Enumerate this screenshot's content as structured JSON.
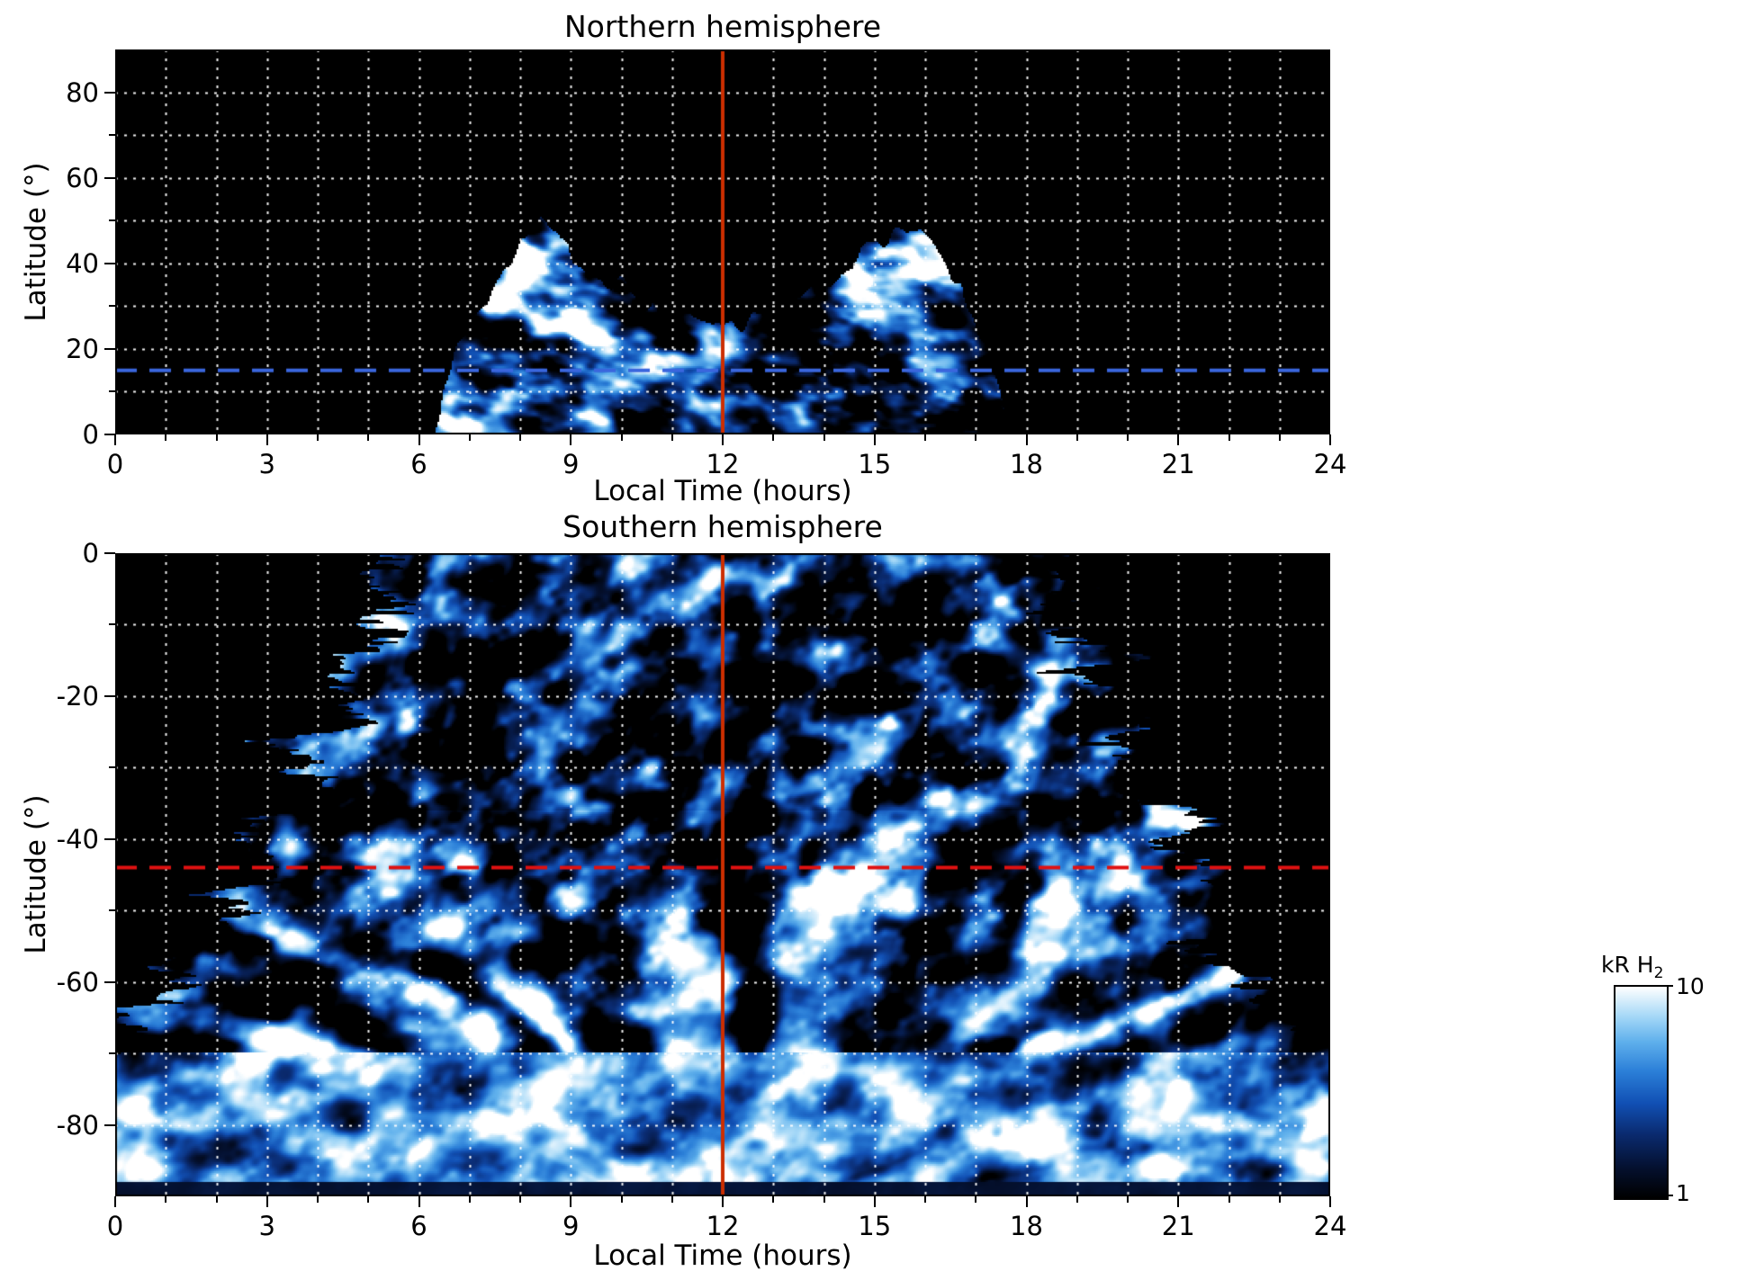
{
  "figure": {
    "background": "#ffffff"
  },
  "chart_data": [
    {
      "type": "heatmap",
      "title": "Northern hemisphere",
      "xlabel": "Local Time (hours)",
      "ylabel": "Latitude (°)",
      "xlim": [
        0,
        24
      ],
      "ylim": [
        0,
        90
      ],
      "xticks": [
        0,
        3,
        6,
        9,
        12,
        15,
        18,
        21,
        24
      ],
      "xtick_labels": [
        "0",
        "3",
        "6",
        "9",
        "12",
        "15",
        "18",
        "21",
        "24"
      ],
      "yticks": [
        0,
        20,
        40,
        60,
        80
      ],
      "ytick_labels": [
        "0",
        "20",
        "40",
        "60",
        "80"
      ],
      "x_minor_step": 1,
      "y_minor_step": 10,
      "grid": {
        "color": "#ffffff",
        "style": "dotted"
      },
      "noon_line": {
        "x": 12,
        "color": "#cc2e00",
        "style": "solid"
      },
      "ref_line": {
        "y": 15,
        "color": "#3a66dd",
        "style": "dashed"
      },
      "intensity_scale": {
        "units": "kR H2",
        "min": 1,
        "max": 10,
        "scale": "log"
      },
      "emission": {
        "local_time_extent": [
          6.3,
          17.7
        ],
        "wing_peaks": [
          {
            "local_time": 8.2,
            "lat": 50
          },
          {
            "local_time": 15.8,
            "lat": 50
          }
        ],
        "envelope": [
          [
            6.3,
            0
          ],
          [
            6.6,
            14
          ],
          [
            7.0,
            26
          ],
          [
            7.5,
            36
          ],
          [
            8.0,
            46
          ],
          [
            8.4,
            50
          ],
          [
            8.8,
            44
          ],
          [
            9.3,
            40
          ],
          [
            10.0,
            34
          ],
          [
            10.8,
            30
          ],
          [
            11.5,
            27
          ],
          [
            12.2,
            24
          ],
          [
            13.0,
            27
          ],
          [
            13.6,
            31
          ],
          [
            14.2,
            36
          ],
          [
            14.8,
            42
          ],
          [
            15.4,
            47
          ],
          [
            15.9,
            50
          ],
          [
            16.3,
            44
          ],
          [
            16.8,
            32
          ],
          [
            17.2,
            18
          ],
          [
            17.7,
            0
          ]
        ]
      },
      "field_seed": 11
    },
    {
      "type": "heatmap",
      "title": "Southern hemisphere",
      "xlabel": "Local Time (hours)",
      "ylabel": "Latitude (°)",
      "xlim": [
        0,
        24
      ],
      "ylim": [
        -90,
        0
      ],
      "xticks": [
        0,
        3,
        6,
        9,
        12,
        15,
        18,
        21,
        24
      ],
      "xtick_labels": [
        "0",
        "3",
        "6",
        "9",
        "12",
        "15",
        "18",
        "21",
        "24"
      ],
      "yticks": [
        0,
        -20,
        -40,
        -60,
        -80
      ],
      "ytick_labels": [
        "0",
        "-20",
        "-40",
        "-60",
        "-80"
      ],
      "x_minor_step": 1,
      "y_minor_step": 10,
      "grid": {
        "color": "#ffffff",
        "style": "dotted"
      },
      "noon_line": {
        "x": 12,
        "color": "#cc2e00",
        "style": "solid"
      },
      "ref_line": {
        "y": -44,
        "color": "#e01111",
        "style": "dashed"
      },
      "intensity_scale": {
        "units": "kR H2",
        "min": 1,
        "max": 10,
        "scale": "log"
      },
      "emission": {
        "local_time_extent_at_equator": [
          5.4,
          18.6
        ],
        "full_local_time_coverage_below_lat": -70,
        "bright_band_lat_range": [
          -72,
          -87
        ],
        "halfwidth": [
          [
            0,
            6.6
          ],
          [
            10,
            7.0
          ],
          [
            20,
            7.6
          ],
          [
            30,
            8.2
          ],
          [
            40,
            8.9
          ],
          [
            50,
            9.6
          ],
          [
            58,
            10.3
          ],
          [
            64,
            10.9
          ],
          [
            68,
            11.5
          ],
          [
            72,
            12.6
          ],
          [
            90,
            13.0
          ]
        ]
      },
      "texture": {
        "spokes": 26,
        "rings": 0.5
      },
      "field_seed": 29
    }
  ],
  "colorbar": {
    "label": "kR H",
    "label_sub": "2",
    "tick_labels": [
      "10",
      "1"
    ],
    "tick_values": [
      10,
      1
    ],
    "scale": "log",
    "stops": [
      [
        0.0,
        "#000000"
      ],
      [
        0.14,
        "#04102e"
      ],
      [
        0.3,
        "#0a2a6e"
      ],
      [
        0.45,
        "#1150b4"
      ],
      [
        0.6,
        "#2b7fd8"
      ],
      [
        0.74,
        "#5fb0ec"
      ],
      [
        0.86,
        "#a5d8f7"
      ],
      [
        1.0,
        "#ffffff"
      ]
    ]
  }
}
